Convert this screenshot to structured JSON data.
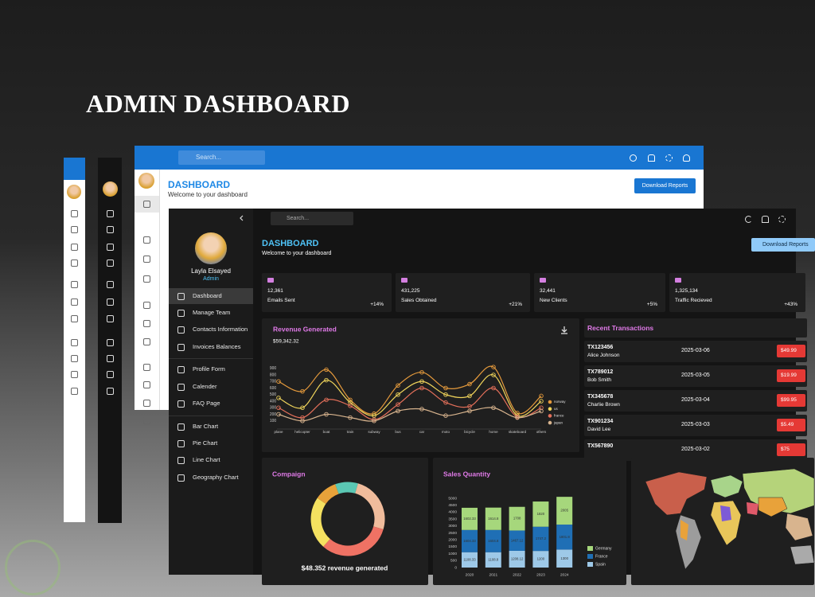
{
  "page_title": "ADMIN DASHBOARD",
  "light_window": {
    "search_placeholder": "Search...",
    "title": "DASHBOARD",
    "subtitle": "Welcome to your dashboard",
    "button": "Download Reports"
  },
  "dark_window": {
    "search_placeholder": "Search...",
    "user": {
      "name": "Layla Elsayed",
      "role": "Admin"
    },
    "menu": [
      "Dashboard",
      "Manage Team",
      "Contacts Information",
      "Invoices Balances",
      "Profile Form",
      "Calender",
      "FAQ Page",
      "Bar Chart",
      "Pie Chart",
      "Line Chart",
      "Geography Chart"
    ],
    "title": "DASHBOARD",
    "subtitle": "Welcome to your dashboard",
    "button": "Download Reports",
    "stats": [
      {
        "value": "12,361",
        "label": "Emails Sent",
        "change": "+14%"
      },
      {
        "value": "431,225",
        "label": "Sales Obtained",
        "change": "+21%"
      },
      {
        "value": "32,441",
        "label": "New Clients",
        "change": "+5%"
      },
      {
        "value": "1,325,134",
        "label": "Traffic Recieved",
        "change": "+43%"
      }
    ],
    "revenue_chart": {
      "type": "line",
      "title": "Revenue Generated",
      "subtitle": "$59,342.32",
      "categories": [
        "plane",
        "helicopter",
        "boat",
        "train",
        "subway",
        "bus",
        "car",
        "moto",
        "bicycle",
        "home",
        "skateboard",
        "others"
      ],
      "series": [
        {
          "name": "norway",
          "color": "#e59a3c",
          "values": [
            700,
            550,
            880,
            420,
            210,
            640,
            840,
            600,
            660,
            920,
            220,
            480
          ]
        },
        {
          "name": "us",
          "color": "#f0d45b",
          "values": [
            450,
            300,
            720,
            380,
            180,
            500,
            700,
            500,
            480,
            800,
            180,
            400
          ]
        },
        {
          "name": "france",
          "color": "#e5705a",
          "values": [
            300,
            150,
            420,
            330,
            120,
            350,
            600,
            380,
            320,
            600,
            160,
            300
          ]
        },
        {
          "name": "japan",
          "color": "#d8b48e",
          "values": [
            200,
            100,
            200,
            150,
            100,
            250,
            280,
            180,
            250,
            300,
            150,
            250
          ]
        }
      ],
      "ylim": [
        0,
        1000
      ],
      "yticks": [
        100,
        200,
        300,
        400,
        500,
        600,
        700,
        800,
        900
      ]
    },
    "transactions": {
      "title": "Recent Transactions",
      "rows": [
        {
          "id": "TX123456",
          "name": "Alice Johnson",
          "date": "2025-03-06",
          "amount": "$49.99"
        },
        {
          "id": "TX789012",
          "name": "Bob Smith",
          "date": "2025-03-05",
          "amount": "$19.99"
        },
        {
          "id": "TX345678",
          "name": "Charlie Brown",
          "date": "2025-03-04",
          "amount": "$99.95"
        },
        {
          "id": "TX901234",
          "name": "David Lee",
          "date": "2025-03-03",
          "amount": "$5.49"
        },
        {
          "id": "TX567890",
          "date": "2025-03-02",
          "amount": "$75"
        }
      ]
    },
    "campaign_chart": {
      "type": "pie",
      "title": "Compaign",
      "values": [
        10,
        25,
        32,
        23,
        10
      ],
      "colors": [
        "#5bc8b4",
        "#f0bc9c",
        "#ef7264",
        "#f4e160",
        "#e8a23a"
      ],
      "caption": "$48.352 revenue generated"
    },
    "sales_chart": {
      "type": "bar",
      "stacked": true,
      "title": "Sales Quantity",
      "categories": [
        "2020",
        "2021",
        "2022",
        "2023",
        "2024"
      ],
      "series": [
        {
          "name": "Germany",
          "color": "#a6d77c",
          "values": [
            1602.33,
            1614.8,
            1708,
            1820,
            2005
          ]
        },
        {
          "name": "France",
          "color": "#1f6fb5",
          "values": [
            1604.33,
            1604.8,
            1467.12,
            1747.2,
            1801.8
          ]
        },
        {
          "name": "Spain",
          "color": "#9ec9e8",
          "values": [
            1108.33,
            1108.8,
            1208.12,
            1200,
            1300
          ]
        }
      ],
      "ylim": [
        0,
        5000
      ],
      "yticks": [
        0,
        500,
        1000,
        1500,
        2000,
        2500,
        3000,
        3500,
        4000,
        4500,
        5000
      ]
    }
  }
}
